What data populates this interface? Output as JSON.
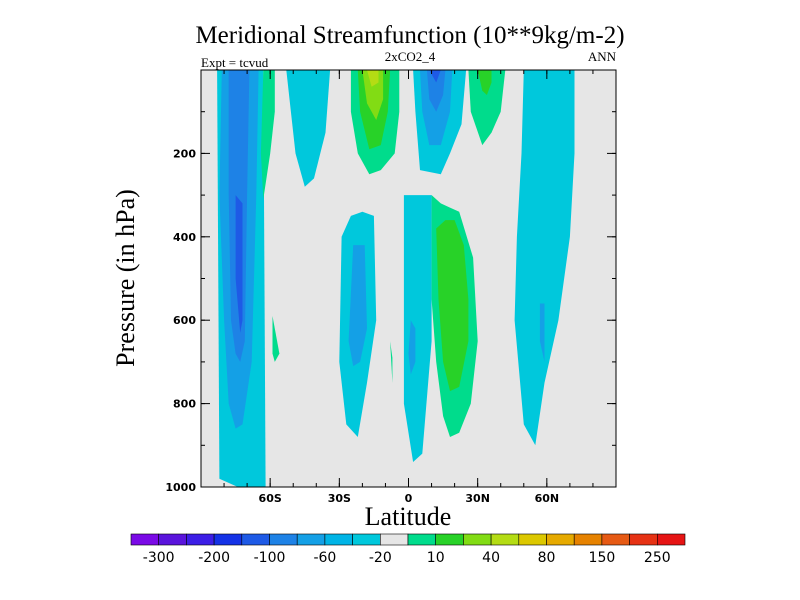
{
  "chart_data": {
    "type": "heatmap",
    "subtype": "filled-contour",
    "title": "Meridional Streamfunction (10**9kg/m-2)",
    "subtitle_center": "2xCO2_4",
    "subtitle_left": "Expt = tcvud",
    "subtitle_right": "ANN",
    "xlabel": "Latitude",
    "ylabel": "Pressure (in hPa)",
    "xlim": [
      -90,
      90
    ],
    "ylim": [
      1000,
      0
    ],
    "yaxis_reversed": true,
    "x_ticks": [
      {
        "value": -60,
        "label": "60S"
      },
      {
        "value": -30,
        "label": "30S"
      },
      {
        "value": 0,
        "label": "0"
      },
      {
        "value": 30,
        "label": "30N"
      },
      {
        "value": 60,
        "label": "60N"
      }
    ],
    "y_ticks": [
      {
        "value": 200,
        "label": "200"
      },
      {
        "value": 400,
        "label": "400"
      },
      {
        "value": 600,
        "label": "600"
      },
      {
        "value": 800,
        "label": "800"
      },
      {
        "value": 1000,
        "label": "1000"
      }
    ],
    "background_color": "#e6e6e6",
    "colorbar": {
      "position": "bottom",
      "labels": [
        "-300",
        "-200",
        "-100",
        "-60",
        "-20",
        "10",
        "40",
        "80",
        "150",
        "250"
      ],
      "colors": [
        "#7a0ae6",
        "#5a14dc",
        "#3c1ee6",
        "#1432e6",
        "#1e5ae6",
        "#1e82e6",
        "#14a0e6",
        "#00b4e6",
        "#00c8dc",
        "#e6e6e6",
        "#00dc8c",
        "#28d228",
        "#82dc14",
        "#b4dc14",
        "#dcc800",
        "#e6aa00",
        "#e68200",
        "#e65a14",
        "#e63214",
        "#e61414"
      ]
    },
    "contours": [
      {
        "value": -20,
        "color": "#00c8dc",
        "points": [
          [
            -82,
            980
          ],
          [
            -74,
            1000
          ],
          [
            -62,
            1000
          ],
          [
            -63,
            0
          ],
          [
            -83,
            0
          ]
        ]
      },
      {
        "value": -60,
        "color": "#14a0e6",
        "points": [
          [
            -80,
            600
          ],
          [
            -82,
            300
          ],
          [
            -81,
            0
          ],
          [
            -65,
            0
          ],
          [
            -66,
            300
          ],
          [
            -68,
            700
          ],
          [
            -72,
            850
          ],
          [
            -75,
            860
          ],
          [
            -78,
            800
          ]
        ]
      },
      {
        "value": -100,
        "color": "#1e82e6",
        "points": [
          [
            -77,
            600
          ],
          [
            -78,
            300
          ],
          [
            -78,
            0
          ],
          [
            -69,
            0
          ],
          [
            -70,
            300
          ],
          [
            -71,
            650
          ],
          [
            -73,
            700
          ],
          [
            -75,
            680
          ]
        ]
      },
      {
        "value": -140,
        "color": "#1e5ae6",
        "points": [
          [
            -75,
            500
          ],
          [
            -75,
            300
          ],
          [
            -72,
            320
          ],
          [
            -72,
            600
          ],
          [
            -73,
            630
          ]
        ]
      },
      {
        "value": -20,
        "color": "#00c8dc",
        "points": [
          [
            -53,
            0
          ],
          [
            -51,
            100
          ],
          [
            -49,
            200
          ],
          [
            -45,
            280
          ],
          [
            -41,
            260
          ],
          [
            -36,
            150
          ],
          [
            -34,
            0
          ]
        ]
      },
      {
        "value": -20,
        "color": "#00c8dc",
        "points": [
          [
            -30,
            700
          ],
          [
            -29,
            400
          ],
          [
            -25,
            350
          ],
          [
            -20,
            340
          ],
          [
            -15,
            350
          ],
          [
            -14,
            600
          ],
          [
            -18,
            750
          ],
          [
            -22,
            880
          ],
          [
            -27,
            850
          ]
        ]
      },
      {
        "value": -60,
        "color": "#14a0e6",
        "points": [
          [
            -26,
            650
          ],
          [
            -24,
            420
          ],
          [
            -19,
            420
          ],
          [
            -18,
            620
          ],
          [
            -21,
            700
          ],
          [
            -24,
            710
          ]
        ]
      },
      {
        "value": -20,
        "color": "#00c8dc",
        "points": [
          [
            -2,
            600
          ],
          [
            -2,
            300
          ],
          [
            10,
            300
          ],
          [
            10,
            650
          ],
          [
            6,
            920
          ],
          [
            2,
            940
          ],
          [
            -2,
            800
          ]
        ]
      },
      {
        "value": -60,
        "color": "#14a0e6",
        "points": [
          [
            0,
            680
          ],
          [
            1,
            600
          ],
          [
            3,
            620
          ],
          [
            3,
            700
          ],
          [
            1,
            730
          ]
        ]
      },
      {
        "value": -20,
        "color": "#00c8dc",
        "points": [
          [
            2,
            0
          ],
          [
            3,
            100
          ],
          [
            5,
            240
          ],
          [
            14,
            250
          ],
          [
            18,
            200
          ],
          [
            23,
            130
          ],
          [
            25,
            0
          ]
        ]
      },
      {
        "value": -60,
        "color": "#14a0e6",
        "points": [
          [
            5,
            0
          ],
          [
            6,
            100
          ],
          [
            9,
            180
          ],
          [
            14,
            180
          ],
          [
            18,
            100
          ],
          [
            19,
            0
          ]
        ]
      },
      {
        "value": -100,
        "color": "#1e82e6",
        "points": [
          [
            8,
            0
          ],
          [
            9,
            70
          ],
          [
            12,
            100
          ],
          [
            15,
            60
          ],
          [
            16,
            0
          ]
        ]
      },
      {
        "value": -140,
        "color": "#1e5ae6",
        "points": [
          [
            9,
            0
          ],
          [
            12,
            30
          ],
          [
            14,
            0
          ]
        ]
      },
      {
        "value": 10,
        "color": "#00dc8c",
        "points": [
          [
            10,
            300
          ],
          [
            14,
            320
          ],
          [
            18,
            330
          ],
          [
            22,
            340
          ],
          [
            28,
            450
          ],
          [
            30,
            650
          ],
          [
            27,
            800
          ],
          [
            22,
            870
          ],
          [
            18,
            880
          ],
          [
            15,
            830
          ],
          [
            12,
            700
          ],
          [
            10,
            550
          ]
        ]
      },
      {
        "value": 40,
        "color": "#28d228",
        "points": [
          [
            12,
            380
          ],
          [
            16,
            360
          ],
          [
            20,
            360
          ],
          [
            24,
            420
          ],
          [
            26,
            550
          ],
          [
            26,
            650
          ],
          [
            22,
            760
          ],
          [
            18,
            770
          ],
          [
            15,
            700
          ],
          [
            13,
            550
          ]
        ]
      },
      {
        "value": -20,
        "color": "#00c8dc",
        "points": [
          [
            50,
            0
          ],
          [
            49,
            200
          ],
          [
            47,
            400
          ],
          [
            46,
            600
          ],
          [
            50,
            850
          ],
          [
            55,
            900
          ],
          [
            59,
            750
          ],
          [
            65,
            600
          ],
          [
            70,
            400
          ],
          [
            72,
            200
          ],
          [
            72,
            0
          ]
        ]
      },
      {
        "value": -60,
        "color": "#14a0e6",
        "points": [
          [
            57,
            650
          ],
          [
            57,
            560
          ],
          [
            59,
            560
          ],
          [
            59,
            700
          ]
        ]
      },
      {
        "value": 10,
        "color": "#00dc8c",
        "points": [
          [
            -25,
            0
          ],
          [
            -25,
            100
          ],
          [
            -22,
            200
          ],
          [
            -17,
            250
          ],
          [
            -12,
            240
          ],
          [
            -6,
            200
          ],
          [
            -4,
            100
          ],
          [
            -4,
            0
          ]
        ]
      },
      {
        "value": 40,
        "color": "#28d228",
        "points": [
          [
            -22,
            0
          ],
          [
            -21,
            100
          ],
          [
            -17,
            190
          ],
          [
            -12,
            180
          ],
          [
            -9,
            100
          ],
          [
            -8,
            0
          ]
        ]
      },
      {
        "value": 80,
        "color": "#82dc14",
        "points": [
          [
            -20,
            0
          ],
          [
            -18,
            80
          ],
          [
            -14,
            120
          ],
          [
            -11,
            70
          ],
          [
            -11,
            0
          ]
        ]
      },
      {
        "value": 150,
        "color": "#b4dc14",
        "points": [
          [
            -18,
            0
          ],
          [
            -16,
            40
          ],
          [
            -13,
            30
          ],
          [
            -13,
            0
          ]
        ]
      },
      {
        "value": 10,
        "color": "#00dc8c",
        "points": [
          [
            26,
            0
          ],
          [
            27,
            100
          ],
          [
            32,
            180
          ],
          [
            36,
            150
          ],
          [
            40,
            100
          ],
          [
            42,
            0
          ]
        ]
      },
      {
        "value": 40,
        "color": "#28d228",
        "points": [
          [
            30,
            0
          ],
          [
            32,
            50
          ],
          [
            34,
            60
          ],
          [
            36,
            30
          ],
          [
            36,
            0
          ]
        ]
      },
      {
        "value": 10,
        "color": "#00dc8c",
        "points": [
          [
            -63,
            0
          ],
          [
            -64,
            200
          ],
          [
            -63,
            310
          ],
          [
            -60,
            200
          ],
          [
            -58,
            100
          ],
          [
            -58,
            0
          ]
        ]
      },
      {
        "value": 10,
        "color": "#00dc8c",
        "points": [
          [
            -59,
            590
          ],
          [
            -59,
            680
          ],
          [
            -58,
            700
          ],
          [
            -56,
            680
          ]
        ]
      },
      {
        "value": 10,
        "color": "#00dc8c",
        "points": [
          [
            -8,
            650
          ],
          [
            -7,
            750
          ],
          [
            -7,
            690
          ]
        ]
      }
    ]
  }
}
